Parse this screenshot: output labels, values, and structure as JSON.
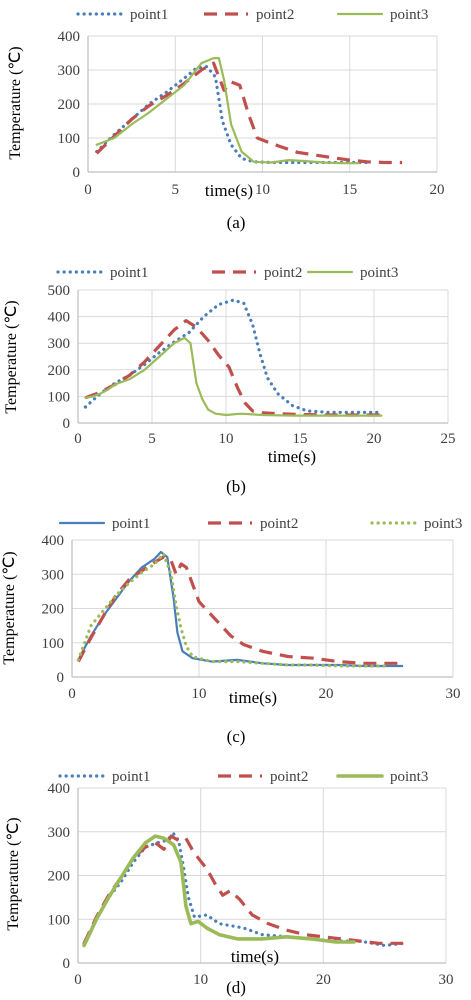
{
  "chart_data": [
    {
      "type": "line",
      "caption": "(a)",
      "xlabel": "time(s)",
      "ylabel": "Temperature (℃)",
      "xlim": [
        0,
        20
      ],
      "ylim": [
        0,
        400
      ],
      "xticks": [
        0,
        5,
        10,
        15,
        20
      ],
      "yticks": [
        0,
        100,
        200,
        300,
        400
      ],
      "legend_position": "top",
      "series": [
        {
          "name": "point1",
          "color": "#4a7ebb",
          "style": "dotted",
          "x": [
            0.5,
            1.5,
            2.5,
            3.5,
            4.5,
            5.5,
            6.2,
            6.8,
            7.3,
            7.7,
            8.2,
            8.8,
            9.5,
            10.5,
            12,
            14,
            16
          ],
          "y": [
            60,
            110,
            155,
            200,
            235,
            275,
            305,
            310,
            280,
            150,
            80,
            40,
            30,
            28,
            28,
            28,
            28
          ]
        },
        {
          "name": "point2",
          "color": "#c0504d",
          "style": "dashed",
          "x": [
            0.5,
            1.5,
            2.5,
            3.5,
            4.5,
            5.5,
            6.5,
            7.2,
            7.8,
            8.2,
            8.7,
            9.2,
            9.7,
            10.2,
            11,
            12,
            13,
            14,
            15,
            16,
            17,
            18
          ],
          "y": [
            55,
            105,
            155,
            195,
            225,
            260,
            300,
            320,
            240,
            265,
            255,
            170,
            100,
            90,
            75,
            58,
            50,
            42,
            35,
            30,
            28,
            28
          ]
        },
        {
          "name": "point3",
          "color": "#9bbb59",
          "style": "solid",
          "x": [
            0.5,
            1.5,
            2.5,
            3.5,
            4.5,
            5.5,
            6.5,
            7.2,
            7.5,
            7.8,
            8.2,
            8.8,
            9.5,
            10.5,
            11.5,
            12.5,
            13.5,
            14.5,
            15.5
          ],
          "y": [
            80,
            100,
            140,
            175,
            215,
            255,
            320,
            335,
            335,
            270,
            140,
            60,
            30,
            28,
            35,
            32,
            28,
            26,
            26
          ]
        }
      ]
    },
    {
      "type": "line",
      "caption": "(b)",
      "xlabel": "time(s)",
      "ylabel": "Temperature (℃)",
      "xlim": [
        0,
        25
      ],
      "ylim": [
        0,
        500
      ],
      "xticks": [
        0,
        5,
        10,
        15,
        20,
        25
      ],
      "yticks": [
        0,
        100,
        200,
        300,
        400,
        500
      ],
      "legend_position": "top",
      "series": [
        {
          "name": "point1",
          "color": "#4a7ebb",
          "style": "dotted",
          "x": [
            0.5,
            1.5,
            2.5,
            3.5,
            4.5,
            5.5,
            6.5,
            7.5,
            8.5,
            9.5,
            10.5,
            11.2,
            11.8,
            12.3,
            12.8,
            13.5,
            14.5,
            15.5,
            17,
            18.5,
            20.5
          ],
          "y": [
            60,
            110,
            150,
            180,
            220,
            265,
            305,
            340,
            400,
            445,
            462,
            450,
            370,
            260,
            170,
            110,
            65,
            45,
            40,
            40,
            40
          ]
        },
        {
          "name": "point2",
          "color": "#c0504d",
          "style": "dashed",
          "x": [
            0.5,
            1.5,
            2.5,
            3.5,
            4.5,
            5.5,
            6.5,
            7.3,
            8,
            8.8,
            9.5,
            10.2,
            10.8,
            11.3,
            11.8,
            12.5,
            13.5,
            15,
            17,
            18.5,
            20.5
          ],
          "y": [
            95,
            115,
            145,
            180,
            230,
            290,
            350,
            385,
            360,
            310,
            255,
            210,
            130,
            75,
            45,
            38,
            35,
            32,
            30,
            30,
            30
          ]
        },
        {
          "name": "point3",
          "color": "#9bbb59",
          "style": "solid",
          "x": [
            0.5,
            1,
            1.5,
            2,
            2.5,
            3.5,
            4.5,
            5.5,
            6.5,
            7.2,
            7.6,
            8,
            8.4,
            8.8,
            9.3,
            10,
            11,
            12.5,
            14.5,
            16.5,
            18.5,
            20.5
          ],
          "y": [
            95,
            100,
            110,
            125,
            145,
            165,
            200,
            250,
            300,
            320,
            300,
            150,
            90,
            50,
            35,
            30,
            35,
            30,
            28,
            28,
            28,
            28
          ]
        }
      ]
    },
    {
      "type": "line",
      "caption": "(c)",
      "xlabel": "time(s)",
      "ylabel": "Temperature (℃)",
      "xlim": [
        0,
        30
      ],
      "ylim": [
        0,
        400
      ],
      "xticks": [
        0,
        10,
        20,
        30
      ],
      "yticks": [
        0,
        100,
        200,
        300,
        400
      ],
      "legend_position": "top",
      "series": [
        {
          "name": "point1",
          "color": "#4a7ebb",
          "style": "solid",
          "x": [
            0.5,
            1.5,
            2.5,
            3.5,
            4.5,
            5.5,
            6.5,
            7,
            7.5,
            8,
            8.3,
            8.7,
            9.5,
            11,
            13,
            15,
            17,
            19,
            21,
            23,
            25,
            26
          ],
          "y": [
            50,
            120,
            180,
            230,
            280,
            320,
            345,
            365,
            350,
            230,
            130,
            75,
            55,
            45,
            50,
            40,
            35,
            35,
            35,
            32,
            32,
            32
          ]
        },
        {
          "name": "point2",
          "color": "#c0504d",
          "style": "dashed",
          "x": [
            0.5,
            1.5,
            2.5,
            3.5,
            4.5,
            5.5,
            6.5,
            7.2,
            7.8,
            8.2,
            8.6,
            9,
            9.4,
            10,
            10.5,
            11.5,
            12.5,
            13.5,
            15,
            17,
            19,
            21,
            23,
            25,
            26
          ],
          "y": [
            45,
            115,
            180,
            240,
            285,
            310,
            335,
            350,
            340,
            300,
            330,
            320,
            280,
            220,
            200,
            160,
            120,
            95,
            75,
            60,
            55,
            45,
            40,
            40,
            40
          ]
        },
        {
          "name": "point3",
          "color": "#9bbb59",
          "style": "dotted",
          "x": [
            0.5,
            1.5,
            2.5,
            3.5,
            4.5,
            5.5,
            6.5,
            7.2,
            7.8,
            8.2,
            8.6,
            9,
            9.5,
            11,
            13,
            15,
            17,
            19,
            21,
            23,
            25
          ],
          "y": [
            50,
            150,
            195,
            240,
            275,
            305,
            330,
            360,
            300,
            210,
            140,
            90,
            60,
            45,
            45,
            40,
            35,
            35,
            32,
            32,
            32
          ]
        }
      ]
    },
    {
      "type": "line",
      "caption": "(d)",
      "xlabel": "time(s)",
      "ylabel": "Temperature (℃)",
      "xlim": [
        0,
        30
      ],
      "ylim": [
        0,
        400
      ],
      "xticks": [
        0,
        10,
        20,
        30
      ],
      "yticks": [
        0,
        100,
        200,
        300,
        400
      ],
      "legend_position": "top",
      "series": [
        {
          "name": "point1",
          "color": "#4a7ebb",
          "style": "dotted",
          "x": [
            0.5,
            1.5,
            2.5,
            3.5,
            4.5,
            5.5,
            6.5,
            7.2,
            7.8,
            8.2,
            8.6,
            9,
            9.5,
            10.5,
            11.5,
            12.5,
            13.5,
            15,
            17,
            19,
            21,
            23,
            25,
            26.5
          ],
          "y": [
            45,
            100,
            150,
            185,
            230,
            265,
            275,
            280,
            295,
            280,
            220,
            150,
            105,
            110,
            90,
            85,
            80,
            65,
            60,
            55,
            50,
            50,
            40,
            45
          ]
        },
        {
          "name": "point2",
          "color": "#c0504d",
          "style": "dashed",
          "x": [
            0.5,
            1.5,
            2.5,
            3.5,
            4.5,
            5.5,
            6.3,
            7,
            7.6,
            8.2,
            8.8,
            9.3,
            9.8,
            10.5,
            11.2,
            11.8,
            12.4,
            13.2,
            14.2,
            15.5,
            17,
            18.5,
            20,
            21.5,
            23,
            24.5,
            26.5
          ],
          "y": [
            45,
            105,
            155,
            195,
            240,
            265,
            275,
            260,
            290,
            280,
            285,
            260,
            240,
            215,
            180,
            155,
            165,
            145,
            110,
            90,
            75,
            65,
            60,
            55,
            50,
            45,
            45
          ]
        },
        {
          "name": "point3",
          "color": "#9bbb59",
          "style": "thick-solid",
          "x": [
            0.5,
            1.5,
            2.5,
            3.5,
            4.5,
            5.5,
            6.3,
            7,
            7.8,
            8.4,
            8.8,
            9.2,
            9.8,
            10.5,
            11.5,
            13,
            15,
            17,
            19,
            21,
            22.5
          ],
          "y": [
            40,
            100,
            150,
            195,
            240,
            275,
            290,
            285,
            270,
            230,
            130,
            90,
            95,
            80,
            65,
            55,
            55,
            60,
            55,
            48,
            48
          ]
        }
      ]
    }
  ]
}
